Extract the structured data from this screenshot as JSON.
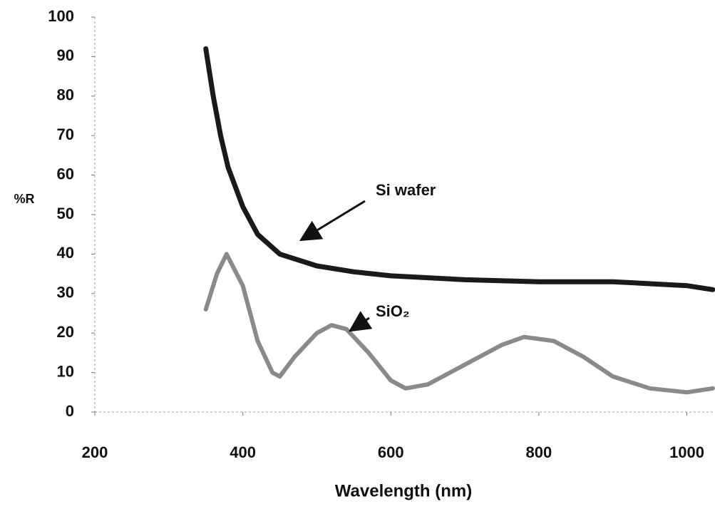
{
  "chart_data": {
    "type": "line",
    "xlabel": "Wavelength (nm)",
    "ylabel": "%R",
    "xlim": [
      200,
      1038
    ],
    "ylim": [
      0,
      100
    ],
    "xticks": [
      200,
      400,
      600,
      800,
      1000
    ],
    "yticks": [
      0,
      10,
      20,
      30,
      40,
      50,
      60,
      70,
      80,
      90,
      100
    ],
    "series": [
      {
        "name": "Si wafer",
        "color": "#1a1a1a",
        "x": [
          350,
          360,
          370,
          380,
          400,
          420,
          450,
          500,
          550,
          600,
          700,
          800,
          900,
          1000,
          1035
        ],
        "values": [
          92,
          80,
          70,
          62,
          52,
          45,
          40,
          37,
          35.5,
          34.5,
          33.5,
          33,
          33,
          32,
          31
        ]
      },
      {
        "name": "SiO₂",
        "color": "#8a8a8a",
        "x": [
          350,
          365,
          378,
          400,
          420,
          440,
          450,
          470,
          500,
          520,
          540,
          570,
          600,
          620,
          650,
          700,
          750,
          780,
          820,
          860,
          900,
          950,
          1000,
          1035
        ],
        "values": [
          26,
          35,
          40,
          32,
          18,
          10,
          9,
          14,
          20,
          22,
          21,
          15,
          8,
          6,
          7,
          12,
          17,
          19,
          18,
          14,
          9,
          6,
          5,
          6
        ]
      }
    ]
  }
}
